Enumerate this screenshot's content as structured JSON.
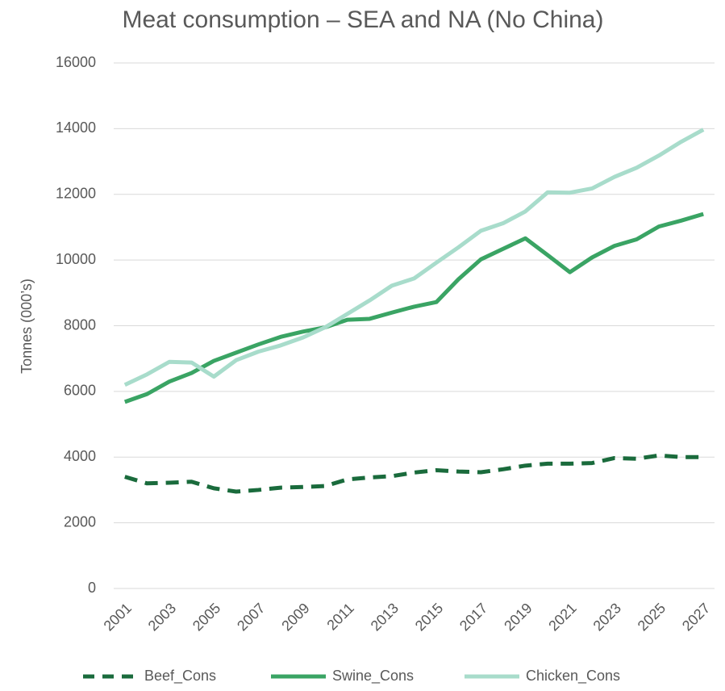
{
  "chart_data": {
    "type": "line",
    "title": "Meat consumption – SEA and NA (No China)",
    "y_label": "Tonnes (000’s)",
    "categories": [
      "2001",
      null,
      "2003",
      null,
      "2005",
      null,
      "2007",
      null,
      "2009",
      null,
      "2011",
      null,
      "2013",
      null,
      "2015",
      null,
      "2017",
      null,
      "2019",
      null,
      "2021",
      null,
      "2023",
      null,
      "2025",
      null,
      "2027"
    ],
    "series": [
      {
        "name": "Beef_Cons",
        "color": "#1a6b3c",
        "dashed": true,
        "values": [
          3400,
          3200,
          3220,
          3250,
          3050,
          2950,
          3000,
          3070,
          3090,
          3120,
          3320,
          3380,
          3420,
          3530,
          3600,
          3560,
          3540,
          3630,
          3740,
          3800,
          3800,
          3820,
          3970,
          3950,
          4050,
          4000,
          4000
        ]
      },
      {
        "name": "Swine_Cons",
        "color": "#3aa464",
        "dashed": false,
        "values": [
          5680,
          5920,
          6300,
          6560,
          6930,
          7180,
          7430,
          7660,
          7820,
          7950,
          8180,
          8210,
          8400,
          8580,
          8720,
          9420,
          10020,
          10340,
          10660,
          10150,
          9630,
          10080,
          10430,
          10630,
          11020,
          11200,
          11400
        ]
      },
      {
        "name": "Chicken_Cons",
        "color": "#a8dccb",
        "dashed": false,
        "values": [
          6200,
          6520,
          6900,
          6880,
          6450,
          6950,
          7210,
          7400,
          7640,
          7950,
          8360,
          8770,
          9220,
          9440,
          9920,
          10390,
          10890,
          11120,
          11480,
          12060,
          12050,
          12180,
          12530,
          12810,
          13180,
          13600,
          13970
        ]
      }
    ],
    "ylim": [
      0,
      16000
    ],
    "yticks": [
      0,
      2000,
      4000,
      6000,
      8000,
      10000,
      12000,
      14000,
      16000
    ],
    "grid": true,
    "legend": "bottom"
  }
}
